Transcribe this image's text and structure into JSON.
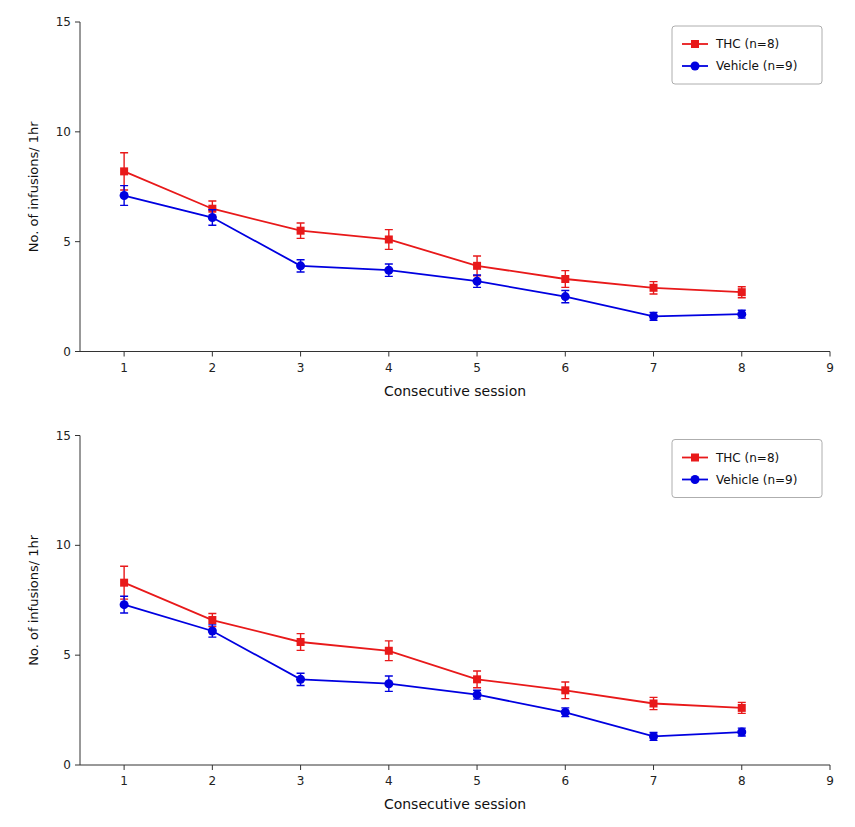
{
  "chart_data": [
    {
      "type": "line",
      "x": [
        1,
        2,
        3,
        4,
        5,
        6,
        7,
        8
      ],
      "series": [
        {
          "name": "THC (n=8)",
          "color": "#e8191a",
          "marker": "square",
          "values": [
            8.2,
            6.5,
            5.5,
            5.1,
            3.9,
            3.3,
            2.9,
            2.7
          ],
          "errors": [
            0.85,
            0.35,
            0.35,
            0.45,
            0.45,
            0.38,
            0.28,
            0.25
          ]
        },
        {
          "name": "Vehicle (n=9)",
          "color": "#0000e0",
          "marker": "circle",
          "values": [
            7.1,
            6.1,
            3.9,
            3.7,
            3.2,
            2.5,
            1.6,
            1.7
          ],
          "errors": [
            0.45,
            0.35,
            0.28,
            0.28,
            0.28,
            0.28,
            0.18,
            0.18
          ]
        }
      ],
      "xlabel": "Consecutive session",
      "ylabel": "No. of infusions/ 1hr",
      "xlim": [
        0.5,
        9.0
      ],
      "ylim": [
        0,
        15
      ],
      "xticks": [
        1,
        2,
        3,
        4,
        5,
        6,
        7,
        8,
        9
      ],
      "yticks": [
        0,
        5,
        10,
        15
      ],
      "legend": "upper right",
      "grid": false
    },
    {
      "type": "line",
      "x": [
        1,
        2,
        3,
        4,
        5,
        6,
        7,
        8
      ],
      "series": [
        {
          "name": "THC (n=8)",
          "color": "#e8191a",
          "marker": "square",
          "values": [
            8.3,
            6.6,
            5.6,
            5.2,
            3.9,
            3.4,
            2.8,
            2.6
          ],
          "errors": [
            0.75,
            0.3,
            0.38,
            0.45,
            0.38,
            0.38,
            0.28,
            0.25
          ]
        },
        {
          "name": "Vehicle (n=9)",
          "color": "#0000e0",
          "marker": "circle",
          "values": [
            7.3,
            6.1,
            3.9,
            3.7,
            3.2,
            2.4,
            1.3,
            1.5
          ],
          "errors": [
            0.38,
            0.28,
            0.28,
            0.35,
            0.2,
            0.2,
            0.18,
            0.18
          ]
        }
      ],
      "xlabel": "Consecutive session",
      "ylabel": "No. of infusions/ 1hr",
      "xlim": [
        0.5,
        9.0
      ],
      "ylim": [
        0,
        15
      ],
      "xticks": [
        1,
        2,
        3,
        4,
        5,
        6,
        7,
        8,
        9
      ],
      "yticks": [
        0,
        5,
        10,
        15
      ],
      "legend": "upper right",
      "grid": false
    }
  ]
}
